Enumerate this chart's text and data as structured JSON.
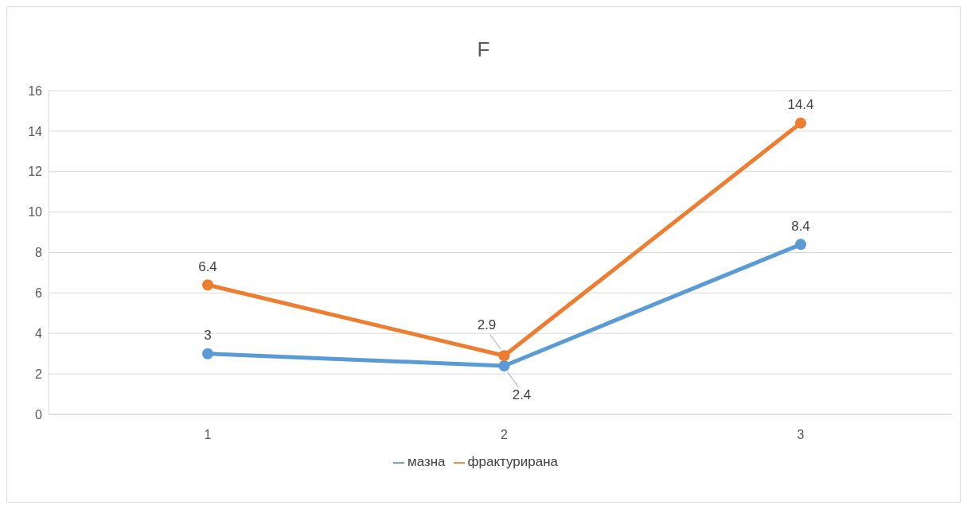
{
  "chart_data": {
    "type": "line",
    "title": "F",
    "categories": [
      "1",
      "2",
      "3"
    ],
    "series": [
      {
        "name": "мазна",
        "color": "#5b9bd5",
        "values": [
          3,
          2.4,
          8.4
        ]
      },
      {
        "name": "фрактурирана",
        "color": "#ed7d31",
        "values": [
          6.4,
          2.9,
          14.4
        ]
      }
    ],
    "ylim": [
      0,
      16
    ],
    "yticks": [
      0,
      2,
      4,
      6,
      8,
      10,
      12,
      14,
      16
    ],
    "grid": "y",
    "legend": "bottom",
    "marker": "circle",
    "line_style": "solid",
    "data_labels": true
  }
}
